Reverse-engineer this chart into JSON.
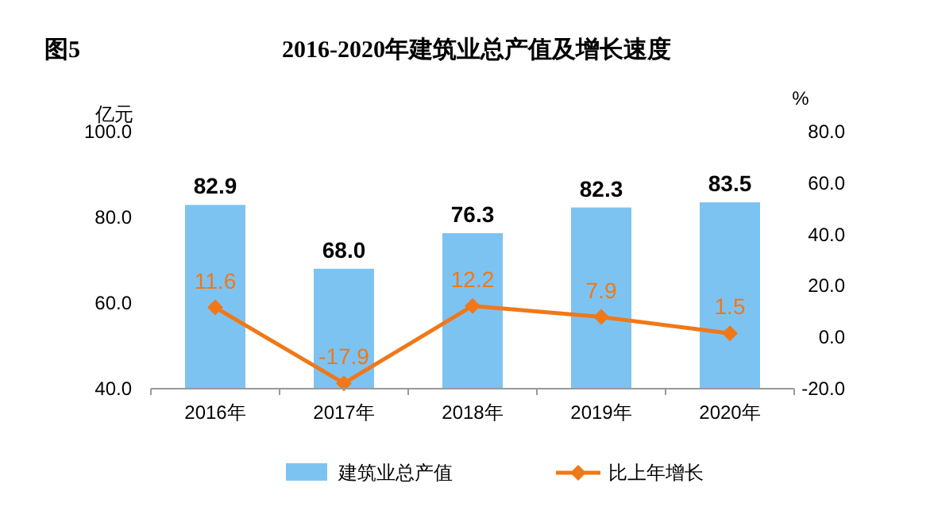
{
  "chart_data": {
    "type": "bar",
    "title": "2016-2020年建筑业总产值及增长速度",
    "annotations": [
      "图5"
    ],
    "ylabel": "亿元",
    "y2label": "%",
    "categories": [
      "2016年",
      "2017年",
      "2018年",
      "2019年",
      "2020年"
    ],
    "series": [
      {
        "name": "建筑业总产值",
        "color": "#7dc3f2",
        "values": [
          82.9,
          68.0,
          76.3,
          82.3,
          83.5
        ],
        "value_labels": [
          "82.9",
          "68.0",
          "76.3",
          "82.3",
          "83.5"
        ]
      },
      {
        "name": "比上年增长",
        "type": "line",
        "axis": "y2",
        "color": "#f07818",
        "values": [
          11.6,
          -17.9,
          12.2,
          7.9,
          1.5
        ],
        "value_labels": [
          "11.6",
          "-17.9",
          "12.2",
          "7.9",
          "1.5"
        ]
      }
    ],
    "ylim": [
      40,
      100
    ],
    "yticks": [
      {
        "value": 40,
        "label": "40.0"
      },
      {
        "value": 60,
        "label": "60.0"
      },
      {
        "value": 80,
        "label": "80.0"
      },
      {
        "value": 100,
        "label": "100.0"
      }
    ],
    "y2lim": [
      -20,
      80
    ],
    "y2ticks": [
      {
        "value": -20,
        "label": "-20.0"
      },
      {
        "value": 0,
        "label": "0.0"
      },
      {
        "value": 20,
        "label": "20.0"
      },
      {
        "value": 40,
        "label": "40.0"
      },
      {
        "value": 60,
        "label": "60.0"
      },
      {
        "value": 80,
        "label": "80.0"
      }
    ],
    "marker": "diamond",
    "legend": "bottom",
    "grid": false
  }
}
